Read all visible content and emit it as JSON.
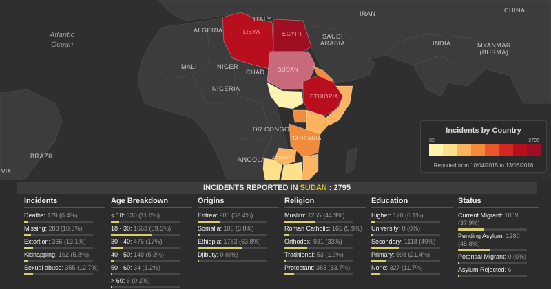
{
  "map": {
    "labels": {
      "italy": "ITALY",
      "iran": "IRAN",
      "china": "CHINA",
      "algeria": "ALGERIA",
      "saudi_arabia": "SAUDI\nARABIA",
      "india": "INDIA",
      "myanmar": "MYANMAR\n(BURMA)",
      "mali": "MALI",
      "niger": "NIGER",
      "chad": "CHAD",
      "nigeria": "NIGERIA",
      "dr_congo": "DR CONGO",
      "angola": "ANGOLA",
      "brazil": "BRAZIL",
      "libya": "LIBYA",
      "egypt": "EGYPT",
      "sudan": "SUDAN",
      "ethiopia": "ETHIOPIA",
      "tanzania": "TANZANIA",
      "zambia": "ZAMBIA",
      "via": "VIA"
    },
    "ocean": "Atlantic\nOcean",
    "colors": {
      "c1": "#fff3b0",
      "c2": "#fde08a",
      "c3": "#fdb460",
      "c4": "#f28b3c",
      "c5": "#e8582c",
      "c6": "#d22a20",
      "c7": "#b80f1f",
      "c8": "#9e0f24",
      "sudan_selected": "#c86a7a"
    }
  },
  "legend": {
    "title": "Incidents by Country",
    "min": "32",
    "max": "2795",
    "range": "Reported from 10/04/2015 to 13/06/2016"
  },
  "header": {
    "prefix": "INCIDENTS REPORTED IN",
    "country": "SUDAN",
    "suffix": ": 2795"
  },
  "columns": [
    {
      "title": "Incidents",
      "stats": [
        {
          "label": "Deaths:",
          "value": "179 (6.4%)",
          "pct": 6.4
        },
        {
          "label": "Missing:",
          "value": "288 (10.3%)",
          "pct": 10.3
        },
        {
          "label": "Extortion:",
          "value": "366 (13.1%)",
          "pct": 13.1
        },
        {
          "label": "Kidnapping:",
          "value": "162 (5.8%)",
          "pct": 5.8
        },
        {
          "label": "Sexual abuse:",
          "value": "355 (12.7%)",
          "pct": 12.7
        }
      ]
    },
    {
      "title": "Age Breakdown",
      "stats": [
        {
          "label": "< 18:",
          "value": "330 (11.8%)",
          "pct": 11.8
        },
        {
          "label": "18 - 30:",
          "value": "1663 (59.5%)",
          "pct": 59.5
        },
        {
          "label": "30 - 40:",
          "value": "475 (17%)",
          "pct": 17
        },
        {
          "label": "40 - 50:",
          "value": "148 (5.3%)",
          "pct": 5.3
        },
        {
          "label": "50 - 60:",
          "value": "34 (1.2%)",
          "pct": 1.2
        },
        {
          "label": "> 60:",
          "value": "6 (0.2%)",
          "pct": 0.2
        }
      ]
    },
    {
      "title": "Origins",
      "stats": [
        {
          "label": "Eritrea:",
          "value": "906 (32.4%)",
          "pct": 32.4
        },
        {
          "label": "Somalia:",
          "value": "106 (3.8%)",
          "pct": 3.8
        },
        {
          "label": "Ethiopia:",
          "value": "1783 (63.8%)",
          "pct": 63.8
        },
        {
          "label": "Djibuty:",
          "value": "0 (0%)",
          "pct": 0
        }
      ]
    },
    {
      "title": "Religion",
      "stats": [
        {
          "label": "Muslim:",
          "value": "1255 (44.9%)",
          "pct": 44.9
        },
        {
          "label": "Roman Catholic:",
          "value": "165 (5.9%)",
          "pct": 5.9
        },
        {
          "label": "Orthodox:",
          "value": "931 (33%)",
          "pct": 33
        },
        {
          "label": "Traditional:",
          "value": "53 (1.9%)",
          "pct": 1.9
        },
        {
          "label": "Protestant:",
          "value": "383 (13.7%)",
          "pct": 13.7
        }
      ]
    },
    {
      "title": "Education",
      "stats": [
        {
          "label": "Higher:",
          "value": "170 (6.1%)",
          "pct": 6.1
        },
        {
          "label": "University:",
          "value": "0 (0%)",
          "pct": 0
        },
        {
          "label": "Secondary:",
          "value": "1118 (40%)",
          "pct": 40
        },
        {
          "label": "Primary:",
          "value": "598 (21.4%)",
          "pct": 21.4
        },
        {
          "label": "None:",
          "value": "327 (11.7%)",
          "pct": 11.7
        }
      ]
    },
    {
      "title": "Status",
      "stats": [
        {
          "label": "Current Migrant:",
          "value": "1059 (37.9%)",
          "pct": 37.9
        },
        {
          "label": "Pending Asylum:",
          "value": "1280 (45.8%)",
          "pct": 45.8
        },
        {
          "label": "Potential Migrant:",
          "value": "0 (0%)",
          "pct": 0
        },
        {
          "label": "Asylum Rejected:",
          "value": "6",
          "pct": 0.2
        }
      ]
    }
  ]
}
